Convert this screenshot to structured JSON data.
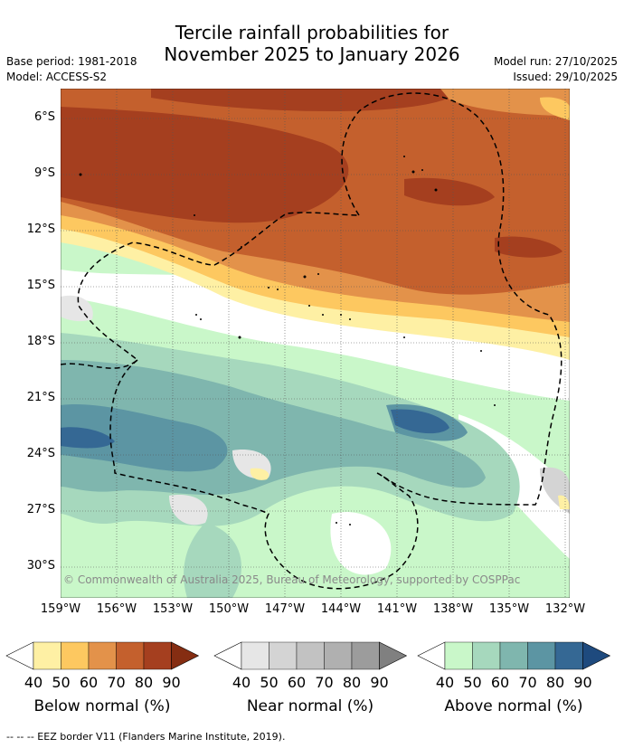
{
  "title_line1": "Tercile rainfall probabilities for",
  "title_line2": "November 2025 to January 2026",
  "meta": {
    "base_period": "Base period: 1981-2018",
    "model": "Model: ACCESS-S2",
    "model_run": "Model run: 27/10/2025",
    "issued": "Issued: 29/10/2025"
  },
  "map": {
    "lat_ticks": [
      "6°S",
      "9°S",
      "12°S",
      "15°S",
      "18°S",
      "21°S",
      "24°S",
      "27°S",
      "30°S"
    ],
    "lon_ticks": [
      "159°W",
      "156°W",
      "153°W",
      "150°W",
      "147°W",
      "144°W",
      "141°W",
      "138°W",
      "135°W",
      "132°W"
    ],
    "copyright": "© Commonwealth of Australia 2025, Bureau of Meteorology, supported by COSPPac"
  },
  "colorbars": [
    {
      "title": "Below normal (%)",
      "ticks": [
        "40",
        "50",
        "60",
        "70",
        "80",
        "90"
      ],
      "colors": [
        "#fef0a4",
        "#fdc860",
        "#e3924a",
        "#c4602d",
        "#a53f1f",
        "#852d12"
      ]
    },
    {
      "title": "Near normal (%)",
      "ticks": [
        "40",
        "50",
        "60",
        "70",
        "80",
        "90"
      ],
      "colors": [
        "#e6e6e6",
        "#d4d4d4",
        "#c2c2c2",
        "#b0b0b0",
        "#9c9c9c",
        "#808080"
      ]
    },
    {
      "title": "Above normal (%)",
      "ticks": [
        "40",
        "50",
        "60",
        "70",
        "80",
        "90"
      ],
      "colors": [
        "#c9f7c9",
        "#a6d8bd",
        "#7fb6ae",
        "#5c95a3",
        "#356894",
        "#1e4a7e"
      ]
    }
  ],
  "footnote": "-- -- -- EEZ border V11 (Flanders Marine Institute, 2019)."
}
